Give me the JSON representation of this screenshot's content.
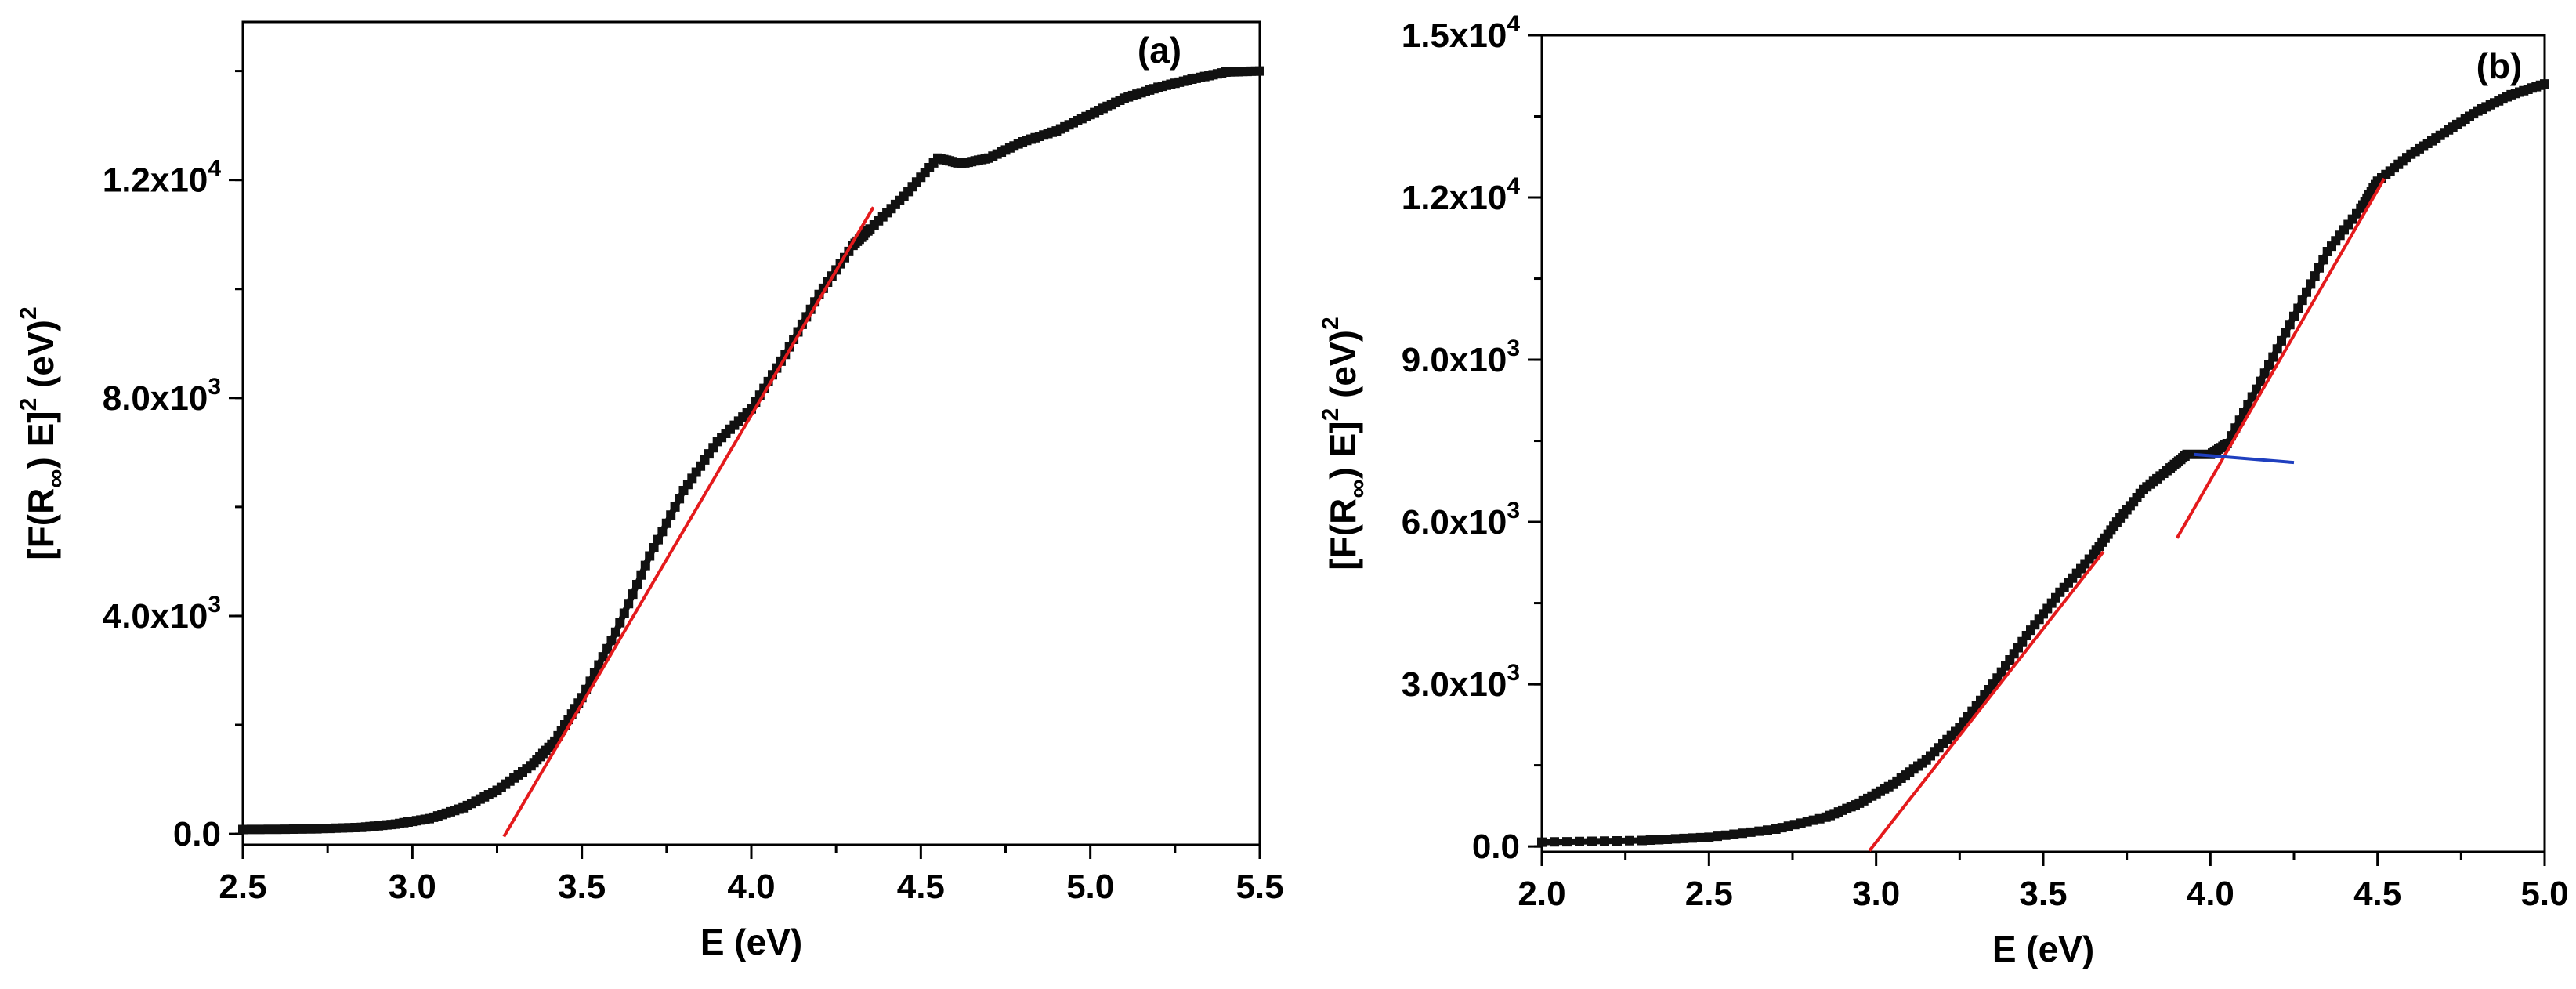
{
  "chart_data": [
    {
      "type": "scatter",
      "panel_label": "(a)",
      "xlabel": "E (eV)",
      "ylabel_parts": {
        "pre": "[F(R",
        "sub": "∞",
        "mid": ") E]",
        "sup1": "2",
        "post": " (eV)",
        "sup2": "2"
      },
      "xlim": [
        2.5,
        5.5
      ],
      "ylim": [
        -200,
        14900
      ],
      "x_ticks": [
        "2.5",
        "3.0",
        "3.5",
        "4.0",
        "4.5",
        "5.0",
        "5.5"
      ],
      "y_ticks": [
        {
          "value": 0,
          "mant": "0.0",
          "exp": ""
        },
        {
          "value": 4000,
          "mant": "4.0x10",
          "exp": "3"
        },
        {
          "value": 8000,
          "mant": "8.0x10",
          "exp": "3"
        },
        {
          "value": 12000,
          "mant": "1.2x10",
          "exp": "4"
        }
      ],
      "y_minor_step": 2000,
      "grid": false,
      "series": [
        {
          "role": "data",
          "color": "#111111",
          "points": [
            [
              2.5,
              80
            ],
            [
              2.7,
              90
            ],
            [
              2.85,
              120
            ],
            [
              2.95,
              180
            ],
            [
              3.05,
              280
            ],
            [
              3.15,
              480
            ],
            [
              3.25,
              800
            ],
            [
              3.35,
              1250
            ],
            [
              3.42,
              1700
            ],
            [
              3.5,
              2500
            ],
            [
              3.6,
              3700
            ],
            [
              3.7,
              5100
            ],
            [
              3.8,
              6300
            ],
            [
              3.9,
              7200
            ],
            [
              4.0,
              7800
            ],
            [
              4.1,
              8800
            ],
            [
              4.2,
              9900
            ],
            [
              4.3,
              10800
            ],
            [
              4.35,
              11100
            ],
            [
              4.45,
              11700
            ],
            [
              4.55,
              12400
            ],
            [
              4.62,
              12300
            ],
            [
              4.7,
              12400
            ],
            [
              4.8,
              12700
            ],
            [
              4.9,
              12900
            ],
            [
              5.0,
              13200
            ],
            [
              5.1,
              13500
            ],
            [
              5.2,
              13700
            ],
            [
              5.3,
              13850
            ],
            [
              5.4,
              13980
            ],
            [
              5.5,
              14000
            ]
          ]
        },
        {
          "role": "fit",
          "color": "#e41a1c",
          "points": [
            [
              3.27,
              -50
            ],
            [
              4.36,
              11500
            ]
          ]
        }
      ]
    },
    {
      "type": "scatter",
      "panel_label": "(b)",
      "xlabel": "E (eV)",
      "ylabel_parts": {
        "pre": "[F(R",
        "sub": "∞",
        "mid": ") E]",
        "sup1": "2",
        "post": " (eV)",
        "sup2": "2"
      },
      "xlim": [
        2.0,
        5.0
      ],
      "ylim": [
        -100,
        15000
      ],
      "x_ticks": [
        "2.0",
        "2.5",
        "3.0",
        "3.5",
        "4.0",
        "4.5",
        "5.0"
      ],
      "y_ticks": [
        {
          "value": 0,
          "mant": "0.0",
          "exp": ""
        },
        {
          "value": 3000,
          "mant": "3.0x10",
          "exp": "3"
        },
        {
          "value": 6000,
          "mant": "6.0x10",
          "exp": "3"
        },
        {
          "value": 9000,
          "mant": "9.0x10",
          "exp": "3"
        },
        {
          "value": 12000,
          "mant": "1.2x10",
          "exp": "4"
        },
        {
          "value": 15000,
          "mant": "1.5x10",
          "exp": "4"
        }
      ],
      "y_minor_step": 1500,
      "grid": false,
      "series": [
        {
          "role": "data",
          "color": "#111111",
          "points": [
            [
              2.0,
              80
            ],
            [
              2.3,
              110
            ],
            [
              2.5,
              170
            ],
            [
              2.7,
              320
            ],
            [
              2.85,
              540
            ],
            [
              2.95,
              800
            ],
            [
              3.05,
              1150
            ],
            [
              3.15,
              1600
            ],
            [
              3.25,
              2200
            ],
            [
              3.35,
              3000
            ],
            [
              3.45,
              3900
            ],
            [
              3.55,
              4700
            ],
            [
              3.65,
              5400
            ],
            [
              3.72,
              6000
            ],
            [
              3.8,
              6600
            ],
            [
              3.88,
              7000
            ],
            [
              3.93,
              7250
            ],
            [
              4.0,
              7250
            ],
            [
              4.05,
              7450
            ],
            [
              4.15,
              8600
            ],
            [
              4.25,
              9800
            ],
            [
              4.35,
              11000
            ],
            [
              4.45,
              11800
            ],
            [
              4.5,
              12300
            ],
            [
              4.6,
              12800
            ],
            [
              4.7,
              13200
            ],
            [
              4.8,
              13600
            ],
            [
              4.9,
              13900
            ],
            [
              5.0,
              14100
            ]
          ]
        },
        {
          "role": "fit",
          "color": "#e41a1c",
          "points": [
            [
              2.98,
              -80
            ],
            [
              3.68,
              5450
            ]
          ]
        },
        {
          "role": "fit",
          "color": "#e41a1c",
          "points": [
            [
              3.9,
              5700
            ],
            [
              4.52,
              12350
            ]
          ]
        },
        {
          "role": "baseline",
          "color": "#1f3fbf",
          "points": [
            [
              3.95,
              7250
            ],
            [
              4.25,
              7100
            ]
          ]
        }
      ]
    }
  ]
}
